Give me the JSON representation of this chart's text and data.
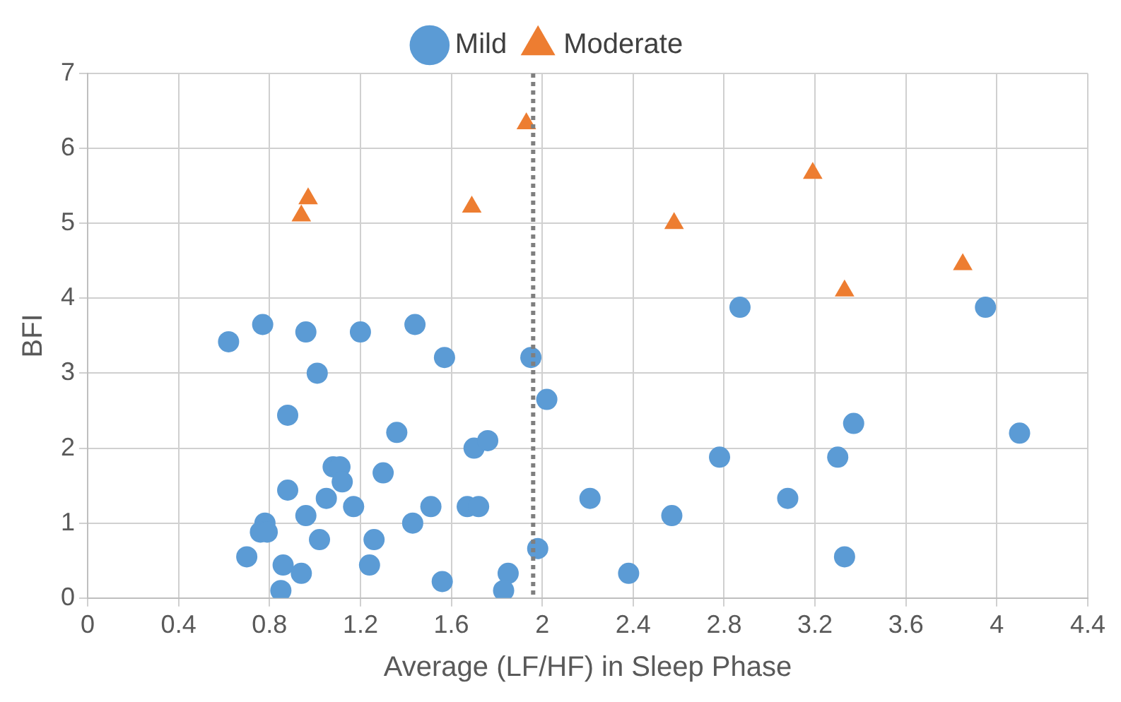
{
  "chart_data": {
    "type": "scatter",
    "xlabel": "Average (LF/HF) in Sleep Phase",
    "ylabel": "BFI",
    "xlim": [
      0,
      4.4
    ],
    "xticks": [
      0,
      0.4,
      0.8,
      1.2,
      1.6,
      2,
      2.4,
      2.8,
      3.2,
      3.6,
      4,
      4.4
    ],
    "ylim": [
      0,
      7
    ],
    "yticks": [
      0,
      1,
      2,
      3,
      4,
      5,
      6,
      7
    ],
    "grid": true,
    "legend": "top",
    "ref_lines": [
      {
        "axis": "x",
        "value": 1.96,
        "color": "#7f7f7f",
        "line_style": "dotted"
      }
    ],
    "series": [
      {
        "name": "Mild",
        "color": "#5b9bd5",
        "marker": "circle",
        "x": [
          0.62,
          0.77,
          0.96,
          1.2,
          1.44,
          1.57,
          1.95,
          1.01,
          0.88,
          2.02,
          1.36,
          1.7,
          1.76,
          1.08,
          1.11,
          1.12,
          1.3,
          0.88,
          1.05,
          1.17,
          1.51,
          1.67,
          1.72,
          0.96,
          0.78,
          0.76,
          0.79,
          1.43,
          1.02,
          1.26,
          0.7,
          0.86,
          0.94,
          1.24,
          1.56,
          0.85,
          1.85,
          1.83,
          1.98,
          2.21,
          2.57,
          2.38,
          2.78,
          2.87,
          3.08,
          3.3,
          3.37,
          3.33,
          3.95,
          4.1
        ],
        "values": [
          3.42,
          3.65,
          3.55,
          3.55,
          3.65,
          3.21,
          3.21,
          3.0,
          2.44,
          2.65,
          2.21,
          2.0,
          2.1,
          1.75,
          1.75,
          1.55,
          1.67,
          1.44,
          1.33,
          1.22,
          1.22,
          1.22,
          1.22,
          1.1,
          1.0,
          0.88,
          0.88,
          1.0,
          0.78,
          0.78,
          0.55,
          0.44,
          0.33,
          0.44,
          0.22,
          0.1,
          0.33,
          0.1,
          0.66,
          1.33,
          1.1,
          0.33,
          1.88,
          3.88,
          1.33,
          1.88,
          2.33,
          0.55,
          3.88,
          2.2
        ]
      },
      {
        "name": "Moderate",
        "color": "#ed7d31",
        "marker": "triangle",
        "x": [
          0.94,
          0.97,
          1.69,
          1.93,
          2.58,
          3.19,
          3.33,
          3.85
        ],
        "values": [
          5.1,
          5.33,
          5.22,
          6.33,
          5.0,
          5.67,
          4.1,
          4.45
        ]
      }
    ]
  }
}
